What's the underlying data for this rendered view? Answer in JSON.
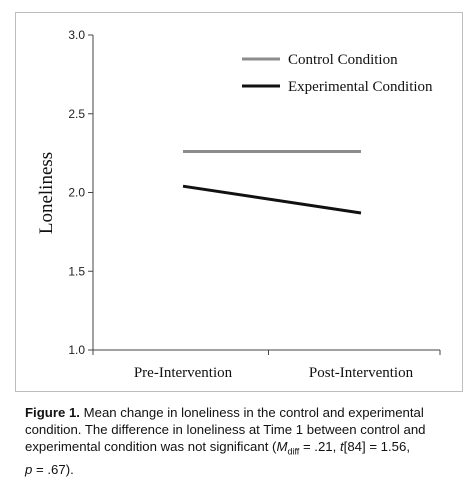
{
  "chart_data": {
    "type": "line",
    "categories": [
      "Pre-Intervention",
      "Post-Intervention"
    ],
    "series": [
      {
        "name": "Control Condition",
        "values": [
          2.26,
          2.26
        ],
        "color": "#8c8c8c"
      },
      {
        "name": "Experimental Condition",
        "values": [
          2.04,
          1.87
        ],
        "color": "#111111"
      }
    ],
    "ylabel": "Loneliness",
    "xlabel": "",
    "ylim": [
      1.0,
      3.0
    ],
    "yticks": [
      "1.0",
      "1.5",
      "2.0",
      "2.5",
      "3.0"
    ],
    "legend_position": "top-right",
    "grid": false
  },
  "caption": {
    "label": "Figure 1.",
    "line1": " Mean change in loneliness in the control and experimental",
    "line2": "condition. The difference in loneliness at Time 1 between control and",
    "line3_a": "experimental condition was not significant (",
    "m": "M",
    "m_sub": "diff",
    "line3_b": " = .21, ",
    "t": "t",
    "line3_c": "[84] = 1.56,",
    "line4_p": "p",
    "line4_b": " = .67)."
  }
}
